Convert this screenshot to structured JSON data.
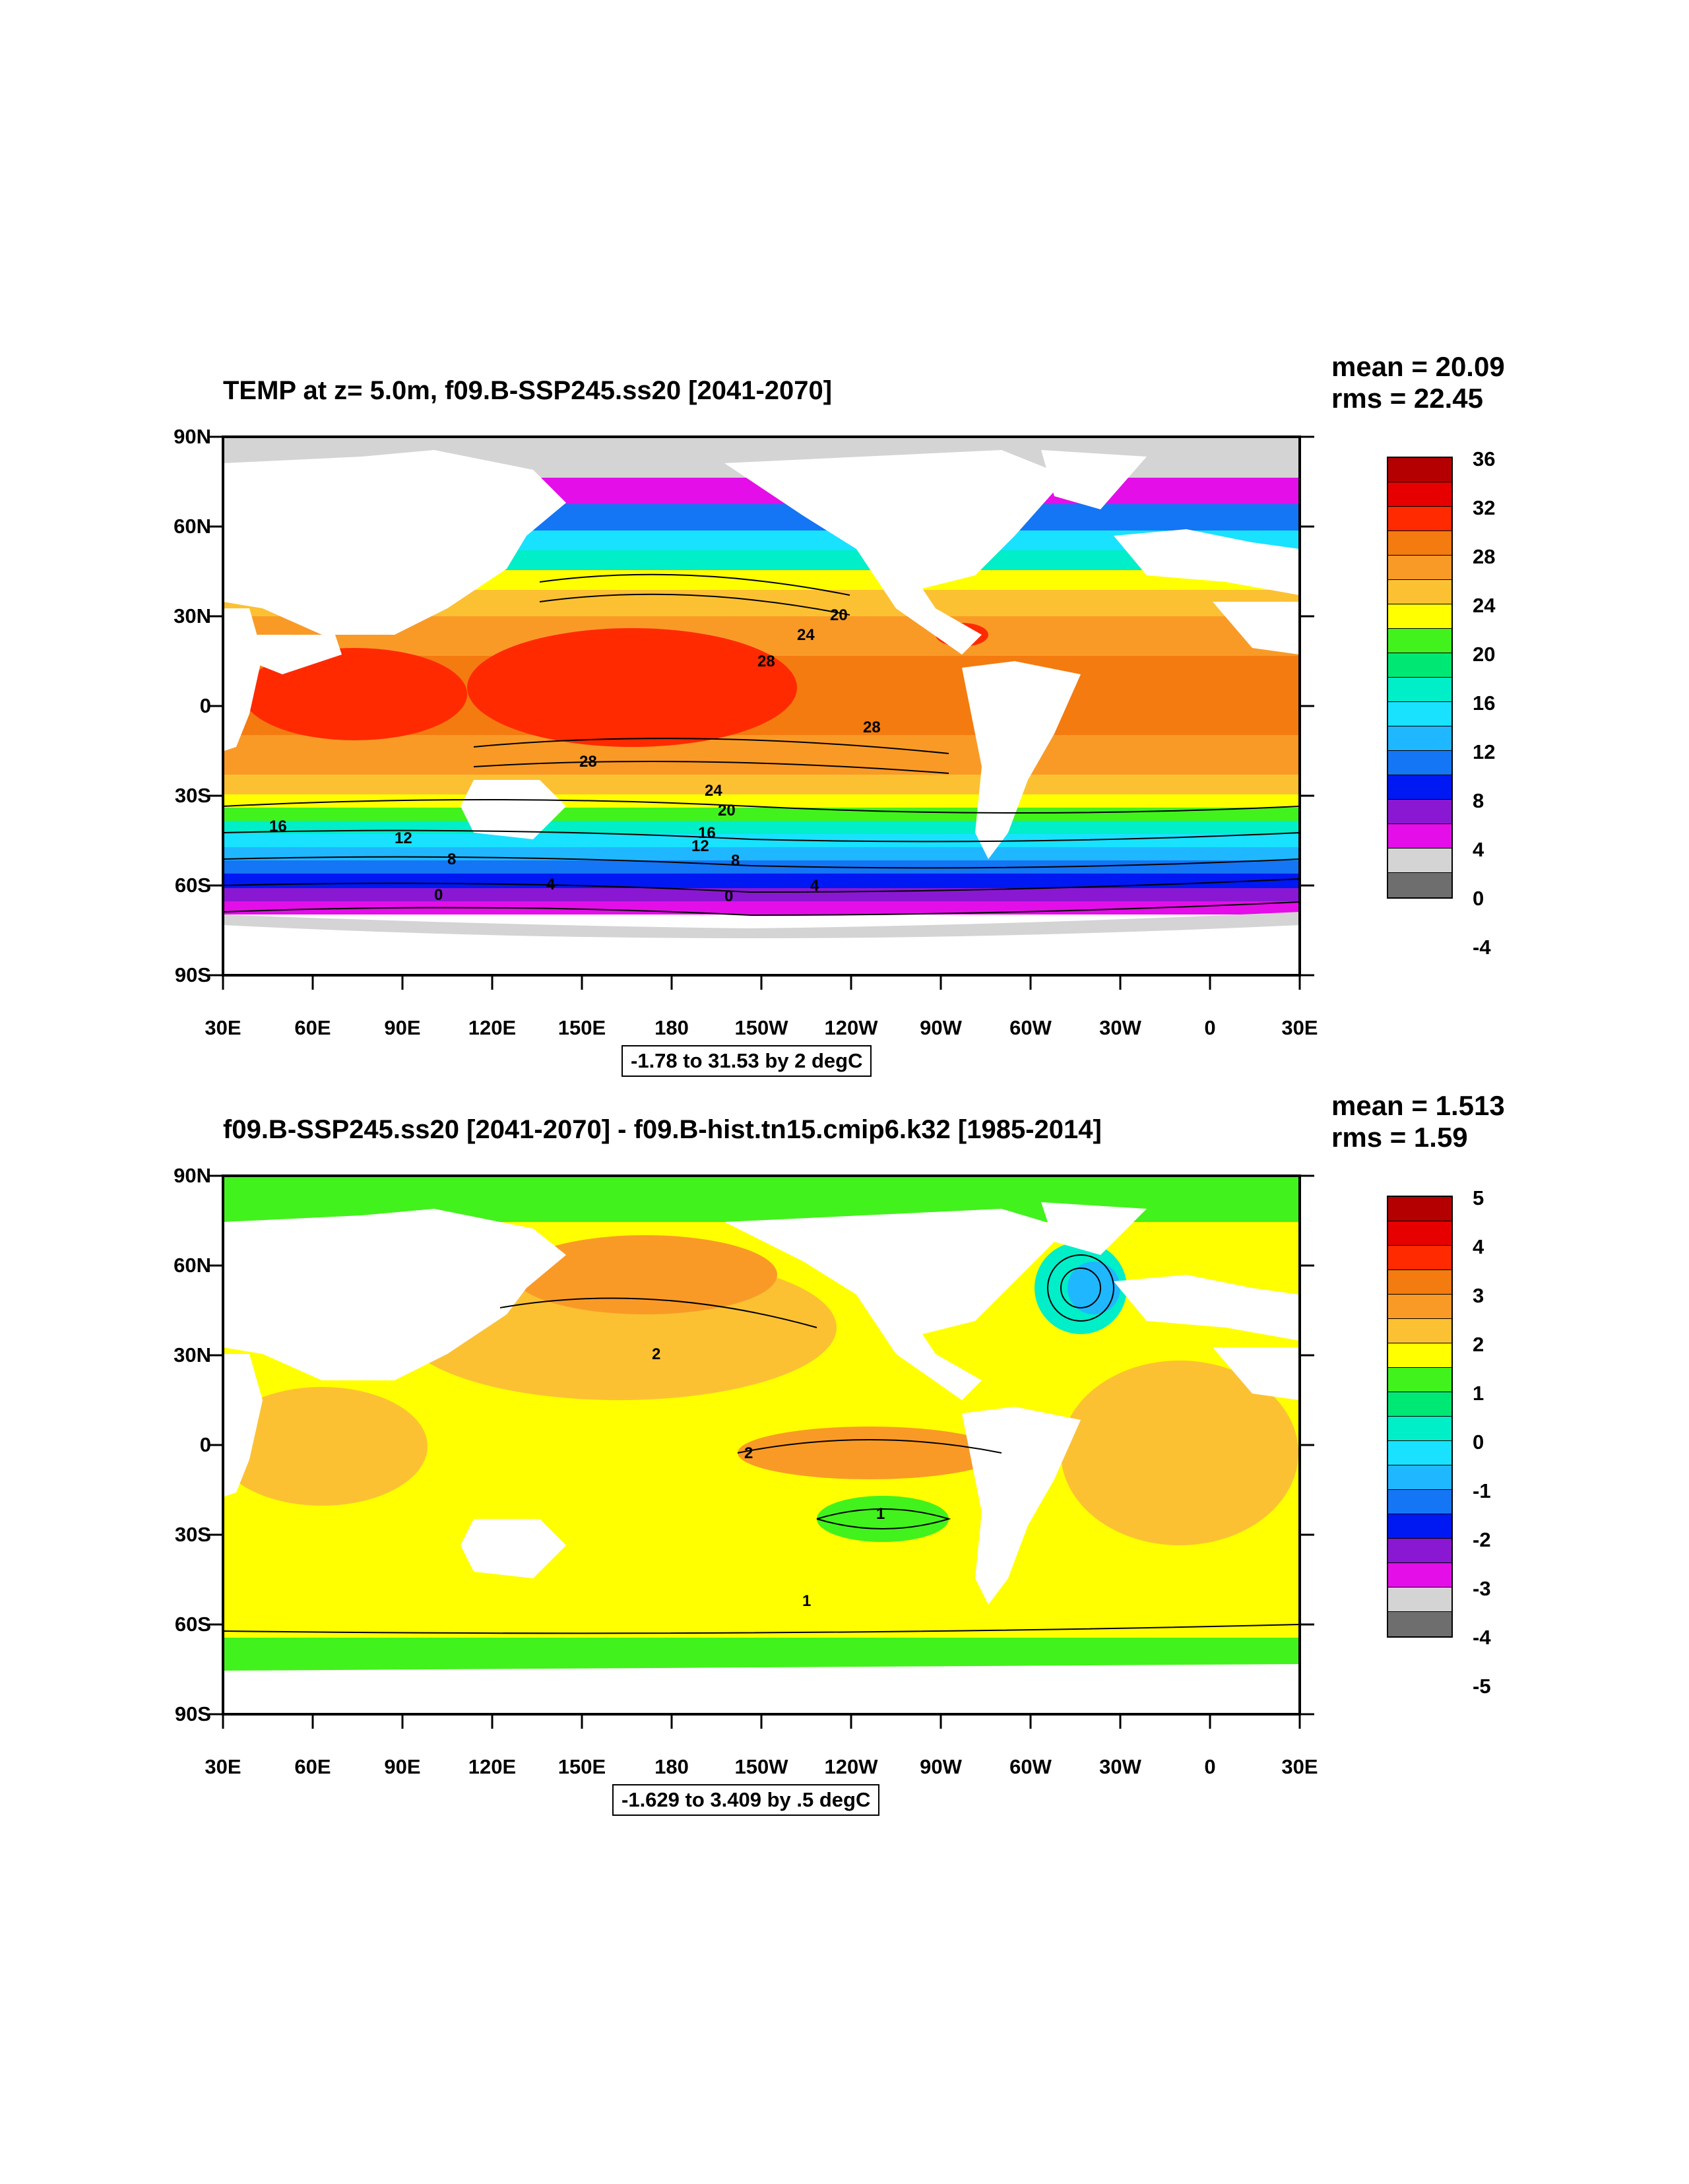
{
  "panels": [
    {
      "title": "TEMP at z=   5.0m, f09.B-SSP245.ss20 [2041-2070]",
      "mean": "mean = 20.09",
      "rms": "rms = 22.45",
      "range": "-1.78 to 31.53 by 2 degC",
      "y_ticks": [
        "90N",
        "60N",
        "30N",
        "0",
        "30S",
        "60S",
        "90S"
      ],
      "x_ticks": [
        "30E",
        "60E",
        "90E",
        "120E",
        "150E",
        "180",
        "150W",
        "120W",
        "90W",
        "60W",
        "30W",
        "0",
        "30E"
      ],
      "colorbar_labels": [
        "36",
        "32",
        "28",
        "24",
        "20",
        "16",
        "12",
        "8",
        "4",
        "0",
        "-4"
      ],
      "colorbar_colors": [
        "#b40000",
        "#e60000",
        "#ff2a00",
        "#f47b0f",
        "#f99a27",
        "#fcc133",
        "#ffff00",
        "#42f21c",
        "#00e874",
        "#00eec8",
        "#18e2ff",
        "#1fb7ff",
        "#1475f5",
        "#0018f2",
        "#8a18d2",
        "#e40ee8",
        "#d4d4d4",
        "#6e6e6e"
      ],
      "contour_labels": [
        "20",
        "24",
        "28",
        "28",
        "28",
        "24",
        "20",
        "16",
        "12",
        "16",
        "12",
        "8",
        "8",
        "4",
        "4",
        "0",
        "0"
      ]
    },
    {
      "title": "f09.B-SSP245.ss20 [2041-2070] - f09.B-hist.tn15.cmip6.k32 [1985-2014]",
      "mean": "mean = 1.513",
      "rms": "rms = 1.59",
      "range": "-1.629 to 3.409 by .5 degC",
      "y_ticks": [
        "90N",
        "60N",
        "30N",
        "0",
        "30S",
        "60S",
        "90S"
      ],
      "x_ticks": [
        "30E",
        "60E",
        "90E",
        "120E",
        "150E",
        "180",
        "150W",
        "120W",
        "90W",
        "60W",
        "30W",
        "0",
        "30E"
      ],
      "colorbar_labels": [
        "5",
        "4",
        "3",
        "2",
        "1",
        "0",
        "-1",
        "-2",
        "-3",
        "-4",
        "-5"
      ],
      "colorbar_colors": [
        "#b40000",
        "#e60000",
        "#ff2a00",
        "#f47b0f",
        "#f99a27",
        "#fcc133",
        "#ffff00",
        "#42f21c",
        "#00e874",
        "#00eec8",
        "#18e2ff",
        "#1fb7ff",
        "#1475f5",
        "#0018f2",
        "#8a18d2",
        "#e40ee8",
        "#d4d4d4",
        "#6e6e6e"
      ],
      "contour_labels": [
        "2",
        "2",
        "1",
        "1"
      ]
    }
  ]
}
